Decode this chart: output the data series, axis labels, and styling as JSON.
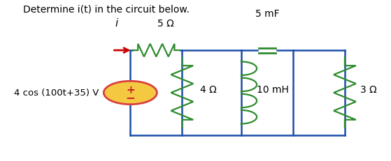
{
  "title": "Determine i(t) in the circuit below.",
  "bg_color": "#ffffff",
  "wire_color": "#1b4fa8",
  "wire_lw": 1.8,
  "component_color": "#2e8b2e",
  "cap_color": "#2e8b2e",
  "source_fill": "#f5c842",
  "source_edge": "#d94040",
  "arrow_color": "#cc0000",
  "circuit": {
    "xl": 0.295,
    "xn1": 0.435,
    "xn2": 0.595,
    "xn3": 0.735,
    "xr": 0.875,
    "yt": 0.685,
    "yb": 0.16
  },
  "source_label": "4 cos (100t+35) V",
  "r1_label": "5 Ω",
  "r2_label": "4 Ω",
  "r3_label": "10 mH",
  "r4_label": "5 mF",
  "r5_label": "3 Ω",
  "i_label": "i"
}
